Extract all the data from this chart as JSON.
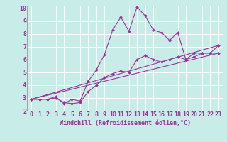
{
  "xlabel": "Windchill (Refroidissement éolien,°C)",
  "xlim": [
    -0.5,
    23.5
  ],
  "ylim": [
    2,
    10.2
  ],
  "xticks": [
    0,
    1,
    2,
    3,
    4,
    5,
    6,
    7,
    8,
    9,
    10,
    11,
    12,
    13,
    14,
    15,
    16,
    17,
    18,
    19,
    20,
    21,
    22,
    23
  ],
  "yticks": [
    2,
    3,
    4,
    5,
    6,
    7,
    8,
    9,
    10
  ],
  "background_color": "#c8ece8",
  "line_color": "#993399",
  "grid_color": "#ffffff",
  "line1_x": [
    0,
    1,
    2,
    3,
    4,
    5,
    6,
    7,
    8,
    9,
    10,
    11,
    12,
    13,
    14,
    15,
    16,
    17,
    18,
    19,
    20,
    21,
    22,
    23
  ],
  "line1_y": [
    2.9,
    2.9,
    2.9,
    3.0,
    2.65,
    2.55,
    2.65,
    3.5,
    4.0,
    4.6,
    4.9,
    5.1,
    5.0,
    6.0,
    6.3,
    6.0,
    5.8,
    6.0,
    6.2,
    6.0,
    6.2,
    6.5,
    6.5,
    6.5
  ],
  "line2_x": [
    0,
    1,
    2,
    3,
    4,
    5,
    6,
    7,
    8,
    9,
    10,
    11,
    12,
    13,
    14,
    15,
    16,
    17,
    18,
    19,
    20,
    21,
    22,
    23
  ],
  "line2_y": [
    2.9,
    2.9,
    2.9,
    3.1,
    2.55,
    2.9,
    2.75,
    4.3,
    5.2,
    6.4,
    8.3,
    9.3,
    8.2,
    10.1,
    9.4,
    8.3,
    8.1,
    7.5,
    8.1,
    6.0,
    6.5,
    6.5,
    6.5,
    7.1
  ],
  "line3_x": [
    0,
    23
  ],
  "line3_y": [
    2.9,
    7.1
  ],
  "line4_x": [
    0,
    23
  ],
  "line4_y": [
    2.9,
    6.5
  ],
  "tick_fontsize": 6,
  "xlabel_fontsize": 6
}
